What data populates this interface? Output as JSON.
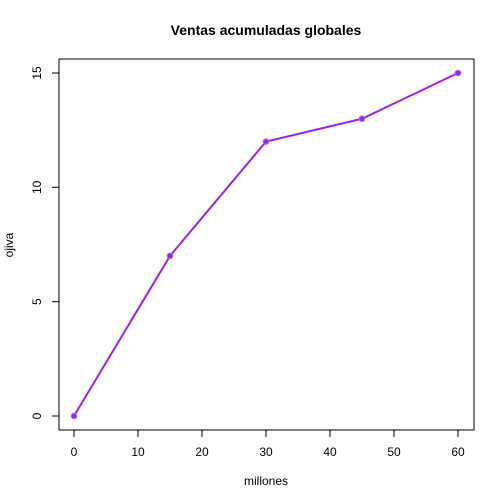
{
  "chart_data": {
    "type": "line",
    "title": "Ventas acumuladas globales",
    "xlabel": "millones",
    "ylabel": "ojiva",
    "x": [
      0,
      15,
      30,
      45,
      60
    ],
    "y": [
      0,
      7,
      12,
      13,
      15
    ],
    "xlim": [
      0,
      60
    ],
    "ylim": [
      0,
      15
    ],
    "xticks": [
      "0",
      "10",
      "20",
      "30",
      "40",
      "50",
      "60"
    ],
    "yticks": [
      "0",
      "5",
      "10",
      "15"
    ],
    "grid": false,
    "line_color": "#a020f0",
    "point_color": "#8a2be2"
  }
}
